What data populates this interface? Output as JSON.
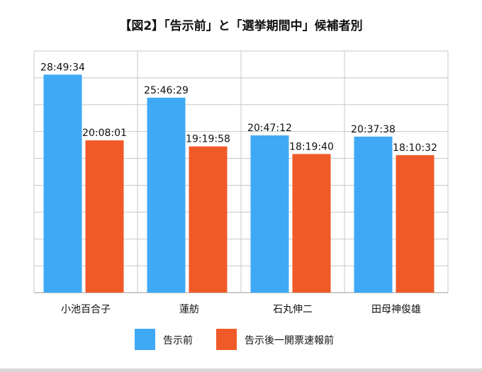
{
  "title": "【図2】「告示前」と「選挙期間中」候補者別",
  "colors": {
    "series_0": "#3fa9f5",
    "series_1": "#f05a28",
    "grid": "#c8c8c8",
    "axis": "#999999"
  },
  "chart_data": {
    "type": "bar",
    "categories": [
      "小池百合子",
      "蓮舫",
      "石丸伸二",
      "田母神俊雄"
    ],
    "series": [
      {
        "name": "告示前",
        "values": [
          103774,
          92789,
          74832,
          74258
        ],
        "labels": [
          "28:49:34",
          "25:46:29",
          "20:47:12",
          "20:37:38"
        ]
      },
      {
        "name": "告示後一開票速報前",
        "values": [
          72481,
          69598,
          65980,
          65432
        ],
        "labels": [
          "20:08:01",
          "19:19:58",
          "18:19:40",
          "18:10:32"
        ]
      }
    ],
    "ylim": [
      0,
      115000
    ],
    "y_gridlines": 9,
    "grid": true,
    "legend_position": "bottom"
  }
}
